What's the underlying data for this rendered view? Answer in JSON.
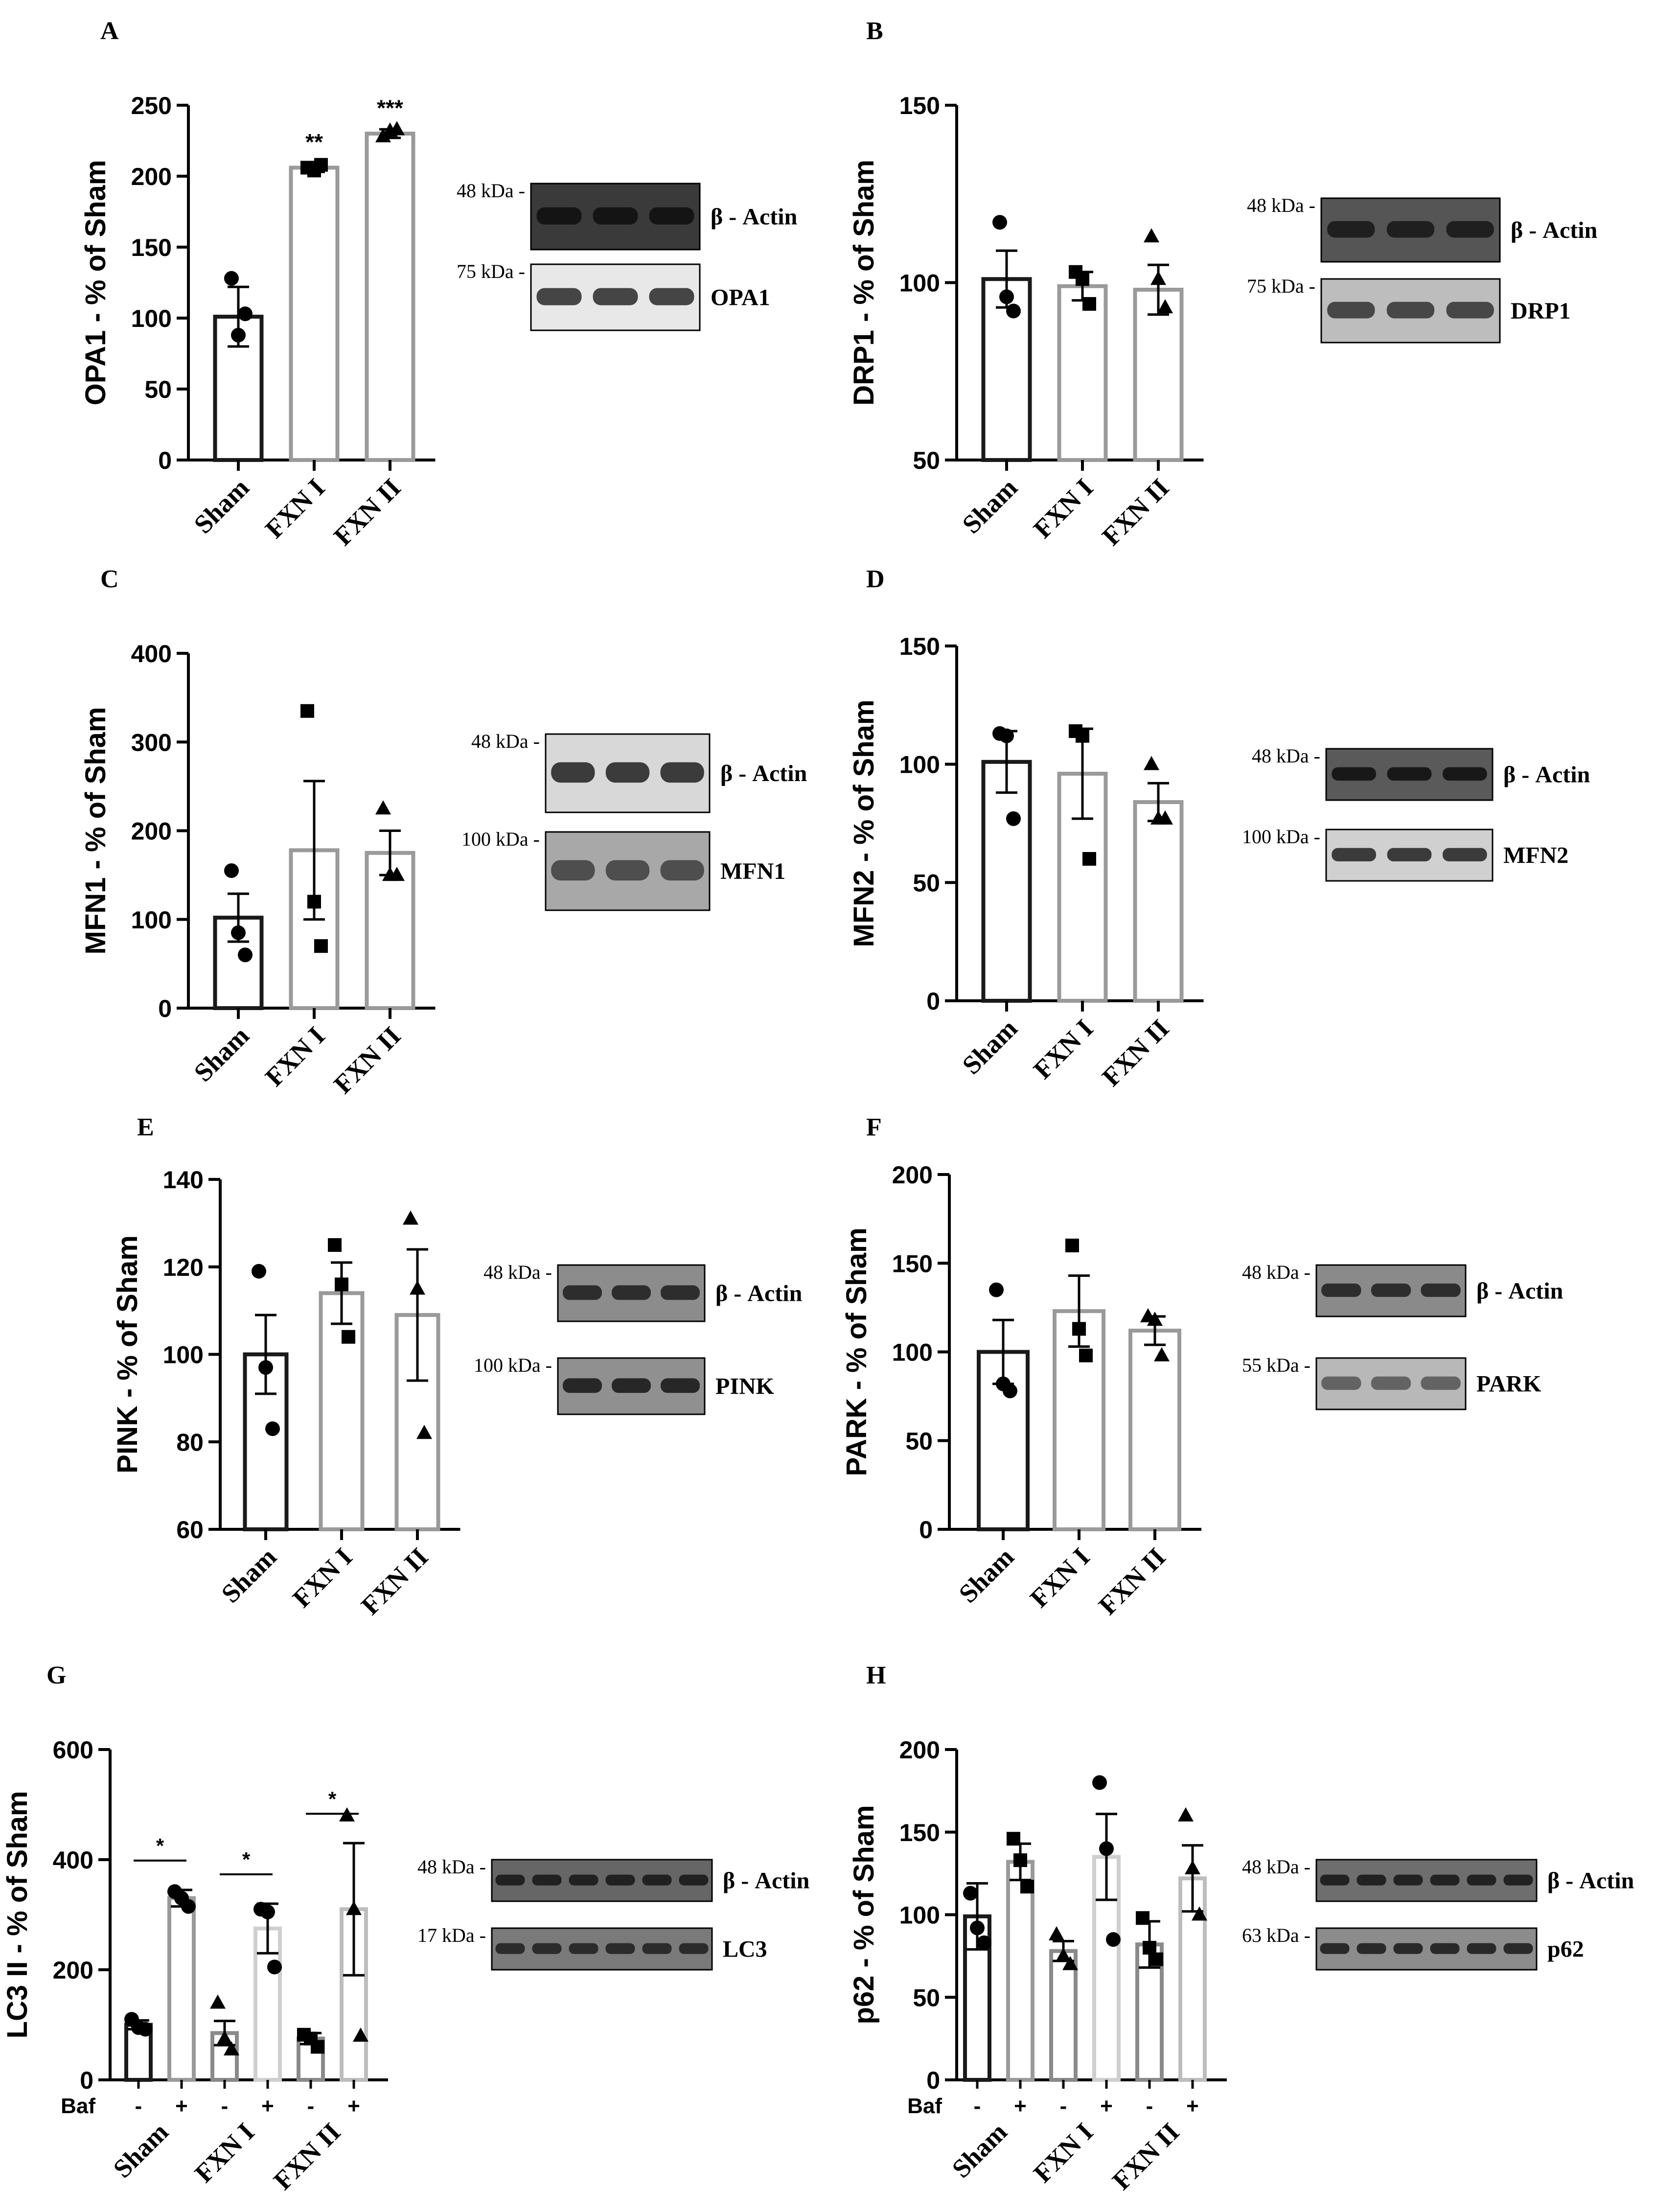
{
  "figure": {
    "panels": [
      {
        "letter": "A",
        "chart": {
          "type": "bar",
          "title": "",
          "xlabel": "",
          "ylabel": "OPA1 - % of Sham",
          "ylim": [
            0,
            250
          ],
          "yticks": [
            0,
            50,
            100,
            150,
            200,
            250
          ],
          "grid": false,
          "categories": [
            "Sham",
            "FXN I",
            "FXN II"
          ],
          "values": [
            101,
            206,
            230
          ],
          "errors": [
            21,
            3,
            3
          ],
          "points": [
            [
              128,
              88,
              103
            ],
            [
              206,
              204,
              208
            ],
            [
              228,
              232,
              233
            ]
          ],
          "markers": [
            "circle",
            "square",
            "triangle"
          ],
          "bar_colors": [
            "#1a1a1a",
            "#9a9a9a",
            "#9a9a9a"
          ],
          "significance": [
            "",
            "**",
            "***"
          ]
        },
        "blot": {
          "rows": [
            {
              "kda": "48 kDa -",
              "protein": "β - Actin",
              "lanes": 3,
              "bg": "#3a3a3a",
              "band": "#111111"
            },
            {
              "kda": "75 kDa -",
              "protein": "OPA1",
              "lanes": 3,
              "bg": "#e8e8e8",
              "band": "#333333"
            }
          ]
        }
      },
      {
        "letter": "B",
        "chart": {
          "type": "bar",
          "title": "",
          "xlabel": "",
          "ylabel": "DRP1 - % of Sham",
          "ylim": [
            50,
            150
          ],
          "yticks": [
            50,
            100,
            150
          ],
          "grid": false,
          "categories": [
            "Sham",
            "FXN I",
            "FXN II"
          ],
          "values": [
            101,
            99,
            98
          ],
          "errors": [
            8,
            4,
            7
          ],
          "points": [
            [
              117,
              96,
              92
            ],
            [
              103,
              101,
              94
            ],
            [
              113,
              101,
              93
            ]
          ],
          "markers": [
            "circle",
            "square",
            "triangle"
          ],
          "bar_colors": [
            "#1a1a1a",
            "#9a9a9a",
            "#9a9a9a"
          ],
          "significance": [
            "",
            "",
            ""
          ]
        },
        "blot": {
          "rows": [
            {
              "kda": "48 kDa -",
              "protein": "β - Actin",
              "lanes": 3,
              "bg": "#555555",
              "band": "#1a1a1a"
            },
            {
              "kda": "75 kDa -",
              "protein": "DRP1",
              "lanes": 3,
              "bg": "#bdbdbd",
              "band": "#3a3a3a"
            }
          ]
        }
      },
      {
        "letter": "C",
        "chart": {
          "type": "bar",
          "title": "",
          "xlabel": "",
          "ylabel": "MFN1 - % of Sham",
          "ylim": [
            0,
            400
          ],
          "yticks": [
            0,
            100,
            200,
            300,
            400
          ],
          "grid": false,
          "categories": [
            "Sham",
            "FXN I",
            "FXN II"
          ],
          "values": [
            102,
            178,
            175
          ],
          "errors": [
            27,
            78,
            25
          ],
          "points": [
            [
              155,
              85,
              60
            ],
            [
              335,
              120,
              70
            ],
            [
              225,
              150,
              150
            ]
          ],
          "markers": [
            "circle",
            "square",
            "triangle"
          ],
          "bar_colors": [
            "#1a1a1a",
            "#9a9a9a",
            "#9a9a9a"
          ],
          "significance": [
            "",
            "",
            ""
          ]
        },
        "blot": {
          "rows": [
            {
              "kda": "48 kDa -",
              "protein": "β - Actin",
              "lanes": 3,
              "bg": "#d8d8d8",
              "band": "#2a2a2a"
            },
            {
              "kda": "100 kDa -",
              "protein": "MFN1",
              "lanes": 3,
              "bg": "#a8a8a8",
              "band": "#444444"
            }
          ]
        }
      },
      {
        "letter": "D",
        "chart": {
          "type": "bar",
          "title": "",
          "xlabel": "",
          "ylabel": "MFN2 - % of Sham",
          "ylim": [
            0,
            150
          ],
          "yticks": [
            0,
            50,
            100,
            150
          ],
          "grid": false,
          "categories": [
            "Sham",
            "FXN I",
            "FXN II"
          ],
          "values": [
            101,
            96,
            84
          ],
          "errors": [
            13,
            19,
            8
          ],
          "points": [
            [
              113,
              112,
              77
            ],
            [
              114,
              112,
              60
            ],
            [
              100,
              77,
              77
            ]
          ],
          "markers": [
            "circle",
            "square",
            "triangle"
          ],
          "bar_colors": [
            "#1a1a1a",
            "#9a9a9a",
            "#9a9a9a"
          ],
          "significance": [
            "",
            "",
            ""
          ]
        },
        "blot": {
          "rows": [
            {
              "kda": "48 kDa -",
              "protein": "β - Actin",
              "lanes": 3,
              "bg": "#5a5a5a",
              "band": "#111111"
            },
            {
              "kda": "100 kDa -",
              "protein": "MFN2",
              "lanes": 3,
              "bg": "#d0d0d0",
              "band": "#2a2a2a"
            }
          ]
        }
      },
      {
        "letter": "E",
        "chart": {
          "type": "bar",
          "title": "",
          "xlabel": "",
          "ylabel": "PINK - % of Sham",
          "ylim": [
            60,
            140
          ],
          "yticks": [
            60,
            80,
            100,
            120,
            140
          ],
          "grid": false,
          "categories": [
            "Sham",
            "FXN I",
            "FXN II"
          ],
          "values": [
            100,
            114,
            109
          ],
          "errors": [
            9,
            7,
            15
          ],
          "points": [
            [
              119,
              97,
              83
            ],
            [
              125,
              116,
              104
            ],
            [
              131,
              115,
              82
            ]
          ],
          "markers": [
            "circle",
            "square",
            "triangle"
          ],
          "bar_colors": [
            "#1a1a1a",
            "#9a9a9a",
            "#9a9a9a"
          ],
          "significance": [
            "",
            "",
            ""
          ]
        },
        "blot": {
          "rows": [
            {
              "kda": "48 kDa -",
              "protein": "β - Actin",
              "lanes": 3,
              "bg": "#8c8c8c",
              "band": "#222222"
            },
            {
              "kda": "100 kDa -",
              "protein": "PINK",
              "lanes": 3,
              "bg": "#909090",
              "band": "#1c1c1c"
            }
          ]
        }
      },
      {
        "letter": "F",
        "chart": {
          "type": "bar",
          "title": "",
          "xlabel": "",
          "ylabel": "PARK - % of Sham",
          "ylim": [
            0,
            200
          ],
          "yticks": [
            0,
            50,
            100,
            150,
            200
          ],
          "grid": false,
          "categories": [
            "Sham",
            "FXN I",
            "FXN II"
          ],
          "values": [
            100,
            123,
            112
          ],
          "errors": [
            18,
            20,
            8
          ],
          "points": [
            [
              135,
              82,
              78
            ],
            [
              160,
              113,
              98
            ],
            [
              120,
              118,
              98
            ]
          ],
          "markers": [
            "circle",
            "square",
            "triangle"
          ],
          "bar_colors": [
            "#1a1a1a",
            "#9a9a9a",
            "#9a9a9a"
          ],
          "significance": [
            "",
            "",
            ""
          ]
        },
        "blot": {
          "rows": [
            {
              "kda": "48 kDa -",
              "protein": "β - Actin",
              "lanes": 3,
              "bg": "#8a8a8a",
              "band": "#222222"
            },
            {
              "kda": "55 kDa -",
              "protein": "PARK",
              "lanes": 3,
              "bg": "#b8b8b8",
              "band": "#5a5a5a"
            }
          ]
        }
      },
      {
        "letter": "G",
        "chart": {
          "type": "bar",
          "title": "",
          "xlabel": "",
          "ylabel": "LC3 II - % of Sham",
          "ylim": [
            0,
            600
          ],
          "yticks": [
            0,
            200,
            400,
            600
          ],
          "grid": false,
          "row_label": "Baf",
          "baf": [
            "-",
            "+",
            "-",
            "+",
            "-",
            "+"
          ],
          "categories": [
            "Sham",
            "FXN I",
            "FXN II"
          ],
          "values": [
            100,
            330,
            85,
            275,
            75,
            310
          ],
          "errors": [
            8,
            15,
            22,
            45,
            10,
            120
          ],
          "points": [
            [
              110,
              95,
              92
            ],
            [
              342,
              330,
              315
            ],
            [
              140,
              75,
              55
            ],
            [
              310,
              305,
              205
            ],
            [
              82,
              75,
              60
            ],
            [
              480,
              310,
              80
            ]
          ],
          "markers": [
            "circle",
            "circle",
            "triangle",
            "circle",
            "square",
            "triangle"
          ],
          "bar_colors": [
            "#1a1a1a",
            "#9a9a9a",
            "#8a8a8a",
            "#cfcfcf",
            "#8a8a8a",
            "#bdbdbd"
          ],
          "significance_brackets": [
            {
              "from": 0,
              "to": 1,
              "label": "*"
            },
            {
              "from": 2,
              "to": 3,
              "label": "*"
            },
            {
              "from": 4,
              "to": 5,
              "label": "*"
            }
          ]
        },
        "blot": {
          "rows": [
            {
              "kda": "48 kDa -",
              "protein": "β - Actin",
              "lanes": 6,
              "bg": "#666666",
              "band": "#1a1a1a"
            },
            {
              "kda": "17 kDa -",
              "protein": "LC3",
              "lanes": 6,
              "bg": "#7a7a7a",
              "band": "#222222"
            }
          ]
        }
      },
      {
        "letter": "H",
        "chart": {
          "type": "bar",
          "title": "",
          "xlabel": "",
          "ylabel": "p62 - % of Sham",
          "ylim": [
            0,
            200
          ],
          "yticks": [
            0,
            50,
            100,
            150,
            200
          ],
          "grid": false,
          "row_label": "Baf",
          "baf": [
            "-",
            "+",
            "-",
            "+",
            "-",
            "+"
          ],
          "categories": [
            "Sham",
            "FXN I",
            "FXN II"
          ],
          "values": [
            99,
            132,
            78,
            135,
            82,
            122
          ],
          "errors": [
            20,
            11,
            6,
            26,
            14,
            20
          ],
          "points": [
            [
              113,
              92,
              83
            ],
            [
              146,
              133,
              117
            ],
            [
              88,
              75,
              70
            ],
            [
              180,
              140,
              85
            ],
            [
              98,
              80,
              73
            ],
            [
              160,
              128,
              100
            ]
          ],
          "markers": [
            "circle",
            "square",
            "triangle",
            "circle",
            "square",
            "triangle"
          ],
          "bar_colors": [
            "#1a1a1a",
            "#9a9a9a",
            "#8a8a8a",
            "#cfcfcf",
            "#8a8a8a",
            "#bdbdbd"
          ],
          "significance_brackets": []
        },
        "blot": {
          "rows": [
            {
              "kda": "48 kDa -",
              "protein": "β - Actin",
              "lanes": 6,
              "bg": "#6e6e6e",
              "band": "#1a1a1a"
            },
            {
              "kda": "63 kDa -",
              "protein": "p62",
              "lanes": 6,
              "bg": "#8c8c8c",
              "band": "#1e1e1e"
            }
          ]
        }
      }
    ]
  }
}
